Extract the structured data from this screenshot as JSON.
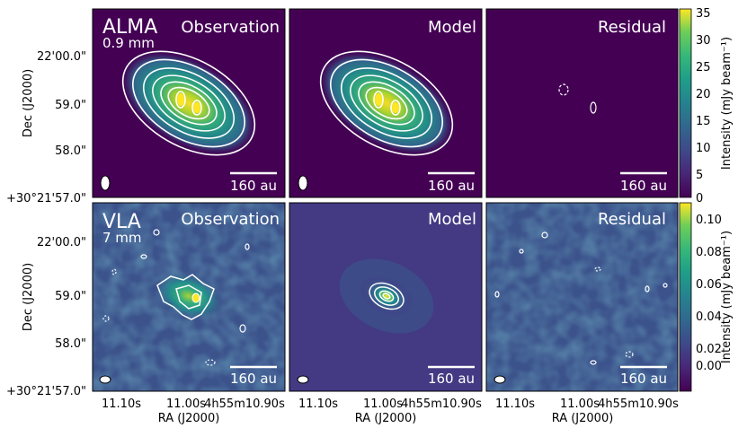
{
  "panels": {
    "top": {
      "row_label": "ALMA",
      "wavelength": "0.9 mm",
      "col_titles": [
        "Observation",
        "Model",
        "Residual"
      ],
      "scalebar": "160 au"
    },
    "bottom": {
      "row_label": "VLA",
      "wavelength": "7 mm",
      "col_titles": [
        "Observation",
        "Model",
        "Residual"
      ],
      "scalebar": "160 au"
    }
  },
  "axes": {
    "ylabel": "Dec (J2000)",
    "xlabel": "RA (J2000)",
    "yticks": [
      "22'00.0\"",
      "59.0\"",
      "58.0\"",
      "+30°21'57.0\""
    ],
    "xticks": [
      "11.10s",
      "11.00s",
      "4h55m10.90s"
    ]
  },
  "colorbars": {
    "top": {
      "label": "Intensity (mJy beam⁻¹)",
      "ticks": [
        "35",
        "30",
        "25",
        "20",
        "15",
        "10",
        "5",
        "0"
      ]
    },
    "bottom": {
      "label": "Intensity (mJy beam⁻¹)",
      "ticks": [
        "0.10",
        "0.08",
        "0.06",
        "0.04",
        "0.02",
        "0.00"
      ]
    }
  },
  "colors": {
    "background": "#440154",
    "contour": "#ffffff",
    "peak": "#fde725"
  }
}
